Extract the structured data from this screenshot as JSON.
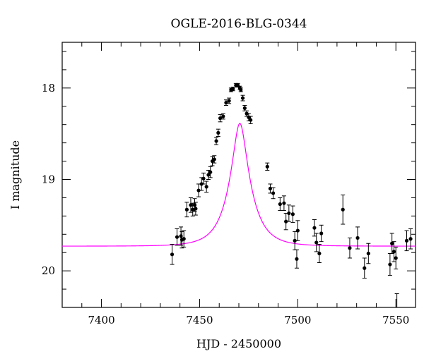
{
  "chart_data": {
    "type": "scatter",
    "title": "OGLE-2016-BLG-0344",
    "xlabel": "HJD - 2450000",
    "ylabel": "I magnitude",
    "xlim": [
      7380,
      7560
    ],
    "ylim": [
      20.4,
      17.5
    ],
    "y_inverted": true,
    "xticks": [
      7400,
      7450,
      7500,
      7550
    ],
    "yticks": [
      18,
      19,
      20
    ],
    "x_minor_step": 10,
    "y_minor_step": 0.2,
    "grid": false,
    "colors": {
      "points": "#000000",
      "model": "#ff00ff"
    },
    "series": [
      {
        "kind": "points_with_errorbars",
        "x": [
          7436.0,
          7438.5,
          7440.5,
          7441.0,
          7442.0,
          7443.5,
          7445.5,
          7446.5,
          7447.5,
          7448.0,
          7449.5,
          7451.0,
          7452.0,
          7453.5,
          7454.5,
          7455.5,
          7456.5,
          7457.5,
          7458.5,
          7459.5,
          7460.5,
          7462.0,
          7463.5,
          7465.0,
          7466.0,
          7467.0,
          7468.5,
          7469.5,
          7470.5,
          7471.0,
          7472.0,
          7473.0,
          7474.0,
          7475.0,
          7476.0,
          7484.5,
          7486.0,
          7487.5,
          7491.0,
          7493.0,
          7494.0,
          7495.5,
          7497.5,
          7498.5,
          7499.5,
          7500.0,
          7508.5,
          7509.5,
          7511.0,
          7512.0,
          7523.0,
          7526.5,
          7530.5,
          7534.0,
          7536.0,
          7547.0,
          7548.0,
          7549.0,
          7550.0,
          7550.5,
          7555.5,
          7557.5
        ],
        "y": [
          19.82,
          19.63,
          19.62,
          19.66,
          19.65,
          19.33,
          19.28,
          19.33,
          19.28,
          19.32,
          19.12,
          19.05,
          18.99,
          19.08,
          18.95,
          18.92,
          18.8,
          18.78,
          18.58,
          18.49,
          18.33,
          18.31,
          18.16,
          18.14,
          18.02,
          18.01,
          17.97,
          17.97,
          18.0,
          18.02,
          18.11,
          18.22,
          18.28,
          18.32,
          18.35,
          18.86,
          19.1,
          19.15,
          19.27,
          19.26,
          19.46,
          19.37,
          19.38,
          19.67,
          19.87,
          19.56,
          19.53,
          19.69,
          19.81,
          19.59,
          19.33,
          19.75,
          19.64,
          19.97,
          19.81,
          19.93,
          19.7,
          19.79,
          19.86,
          20.43,
          19.67,
          19.65
        ],
        "err": [
          0.11,
          0.09,
          0.1,
          0.09,
          0.09,
          0.08,
          0.08,
          0.07,
          0.07,
          0.07,
          0.07,
          0.07,
          0.06,
          0.06,
          0.05,
          0.06,
          0.05,
          0.04,
          0.04,
          0.04,
          0.04,
          0.03,
          0.03,
          0.03,
          0.02,
          0.02,
          0.02,
          0.02,
          0.02,
          0.02,
          0.03,
          0.03,
          0.03,
          0.04,
          0.04,
          0.04,
          0.05,
          0.06,
          0.07,
          0.08,
          0.09,
          0.09,
          0.09,
          0.1,
          0.1,
          0.11,
          0.09,
          0.1,
          0.1,
          0.09,
          0.16,
          0.11,
          0.12,
          0.11,
          0.11,
          0.12,
          0.11,
          0.11,
          0.12,
          0.18,
          0.11,
          0.11
        ]
      },
      {
        "kind": "model_curve",
        "model": "point-lens microlensing fit",
        "t0": 7470.5,
        "u0": 0.3,
        "tE": 10.8,
        "i_base": 19.73
      }
    ]
  }
}
